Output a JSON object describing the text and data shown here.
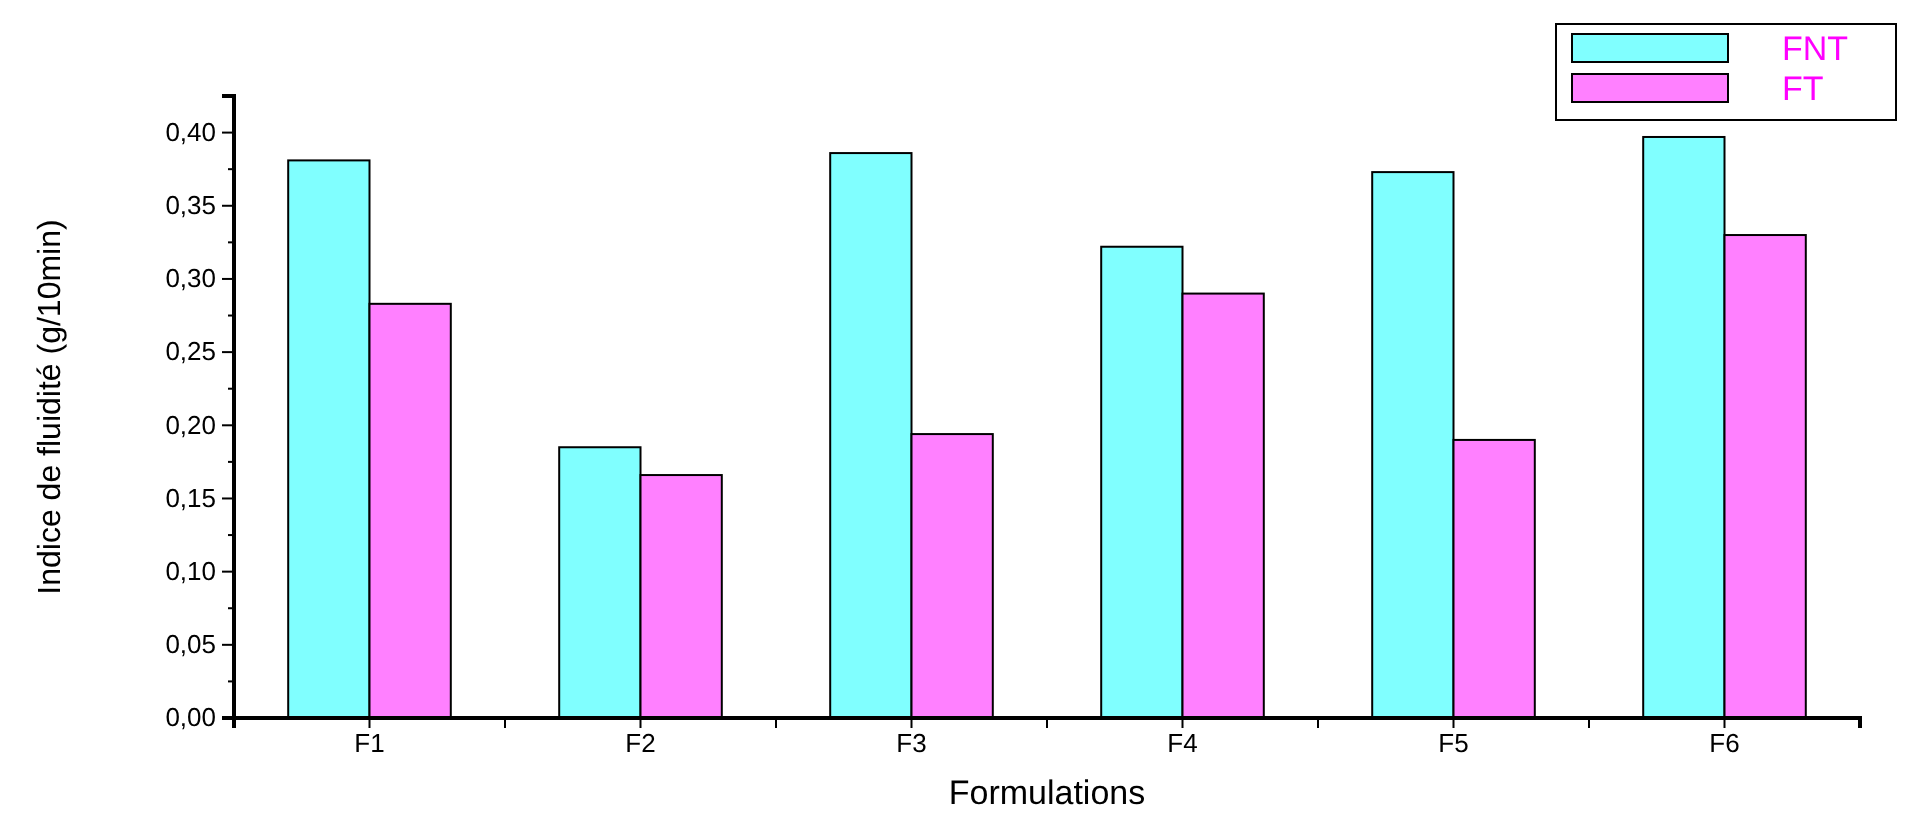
{
  "chart_data": {
    "type": "bar",
    "xlabel": "Formulations",
    "ylabel": "Indice de fluidité (g/10min)",
    "categories": [
      "F1",
      "F2",
      "F3",
      "F4",
      "F5",
      "F6"
    ],
    "series": [
      {
        "name": "FNT",
        "color": "#80ffff",
        "values": [
          0.381,
          0.185,
          0.386,
          0.322,
          0.373,
          0.397
        ]
      },
      {
        "name": "FT",
        "color": "#ff80ff",
        "values": [
          0.283,
          0.166,
          0.194,
          0.29,
          0.19,
          0.33
        ]
      }
    ],
    "ylim": [
      0,
      0.425
    ],
    "yticks": [
      {
        "value": 0,
        "label": "0,00"
      },
      {
        "value": 0.05,
        "label": "0,05"
      },
      {
        "value": 0.1,
        "label": "0,10"
      },
      {
        "value": 0.15,
        "label": "0,15"
      },
      {
        "value": 0.2,
        "label": "0,20"
      },
      {
        "value": 0.25,
        "label": "0,25"
      },
      {
        "value": 0.3,
        "label": "0,30"
      },
      {
        "value": 0.35,
        "label": "0,35"
      },
      {
        "value": 0.4,
        "label": "0,40"
      }
    ],
    "legend": "top right",
    "grid": false
  }
}
